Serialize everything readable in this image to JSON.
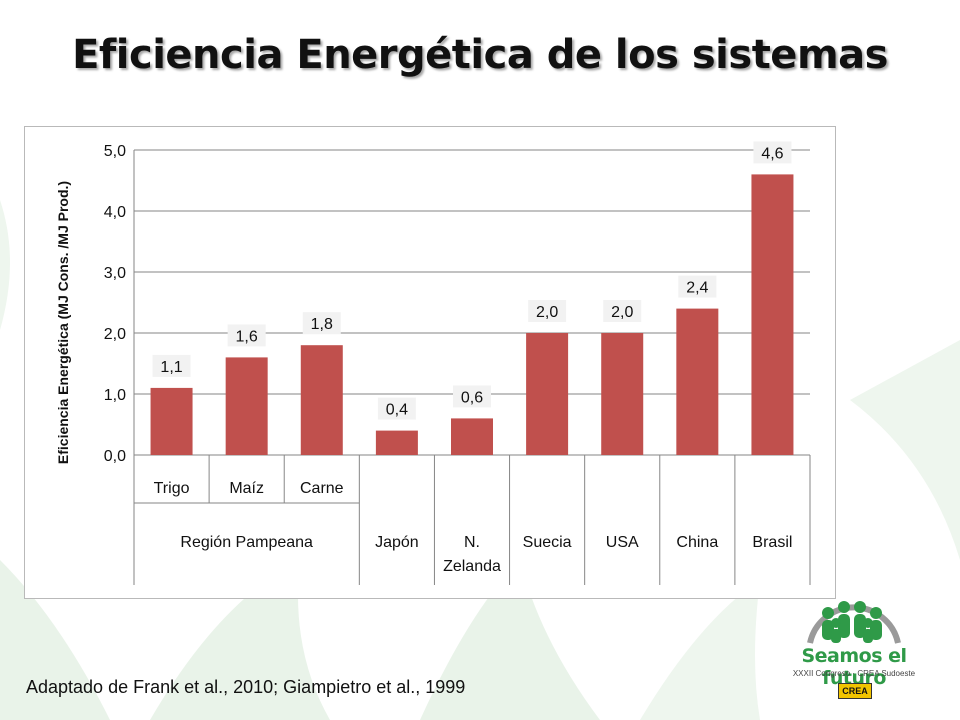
{
  "slide": {
    "title": "Eficiencia Energética de los sistemas",
    "caption": "Adaptado de Frank et al., 2010; Giampietro et al., 1999"
  },
  "logo": {
    "title": "Seamos el futuro",
    "subtitle": "XXXII Congreso · CREA Sudoeste",
    "brand": "CREA"
  },
  "colors": {
    "bar": "#c0504d",
    "grid": "#868686",
    "deco": "#e9f3e9",
    "logo_green": "#2f9a48"
  },
  "chart_data": {
    "type": "bar",
    "ylabel": "Eficiencia Energética (MJ Cons. /MJ Prod.)",
    "ylim": [
      0,
      5
    ],
    "yticks": [
      "0,0",
      "1,0",
      "2,0",
      "3,0",
      "4,0",
      "5,0"
    ],
    "grid": true,
    "categories": [
      "Trigo",
      "Maíz",
      "Carne",
      "Japón",
      "N. Zelanda",
      "Suecia",
      "USA",
      "China",
      "Brasil"
    ],
    "values": [
      1.1,
      1.6,
      1.8,
      0.4,
      0.6,
      2.0,
      2.0,
      2.4,
      4.6
    ],
    "value_labels": [
      "1,1",
      "1,6",
      "1,8",
      "0,4",
      "0,6",
      "2,0",
      "2,0",
      "2,4",
      "4,6"
    ],
    "groups": [
      {
        "label": "Región Pampeana",
        "sublabels": [
          "Trigo",
          "Maíz",
          "Carne"
        ],
        "span": 3
      },
      {
        "label": "Japón",
        "sublabels": [],
        "span": 1
      },
      {
        "label": "N. Zelanda",
        "sublabels": [],
        "span": 1
      },
      {
        "label": "Suecia",
        "sublabels": [],
        "span": 1
      },
      {
        "label": "USA",
        "sublabels": [],
        "span": 1
      },
      {
        "label": "China",
        "sublabels": [],
        "span": 1
      },
      {
        "label": "Brasil",
        "sublabels": [],
        "span": 1
      }
    ]
  }
}
